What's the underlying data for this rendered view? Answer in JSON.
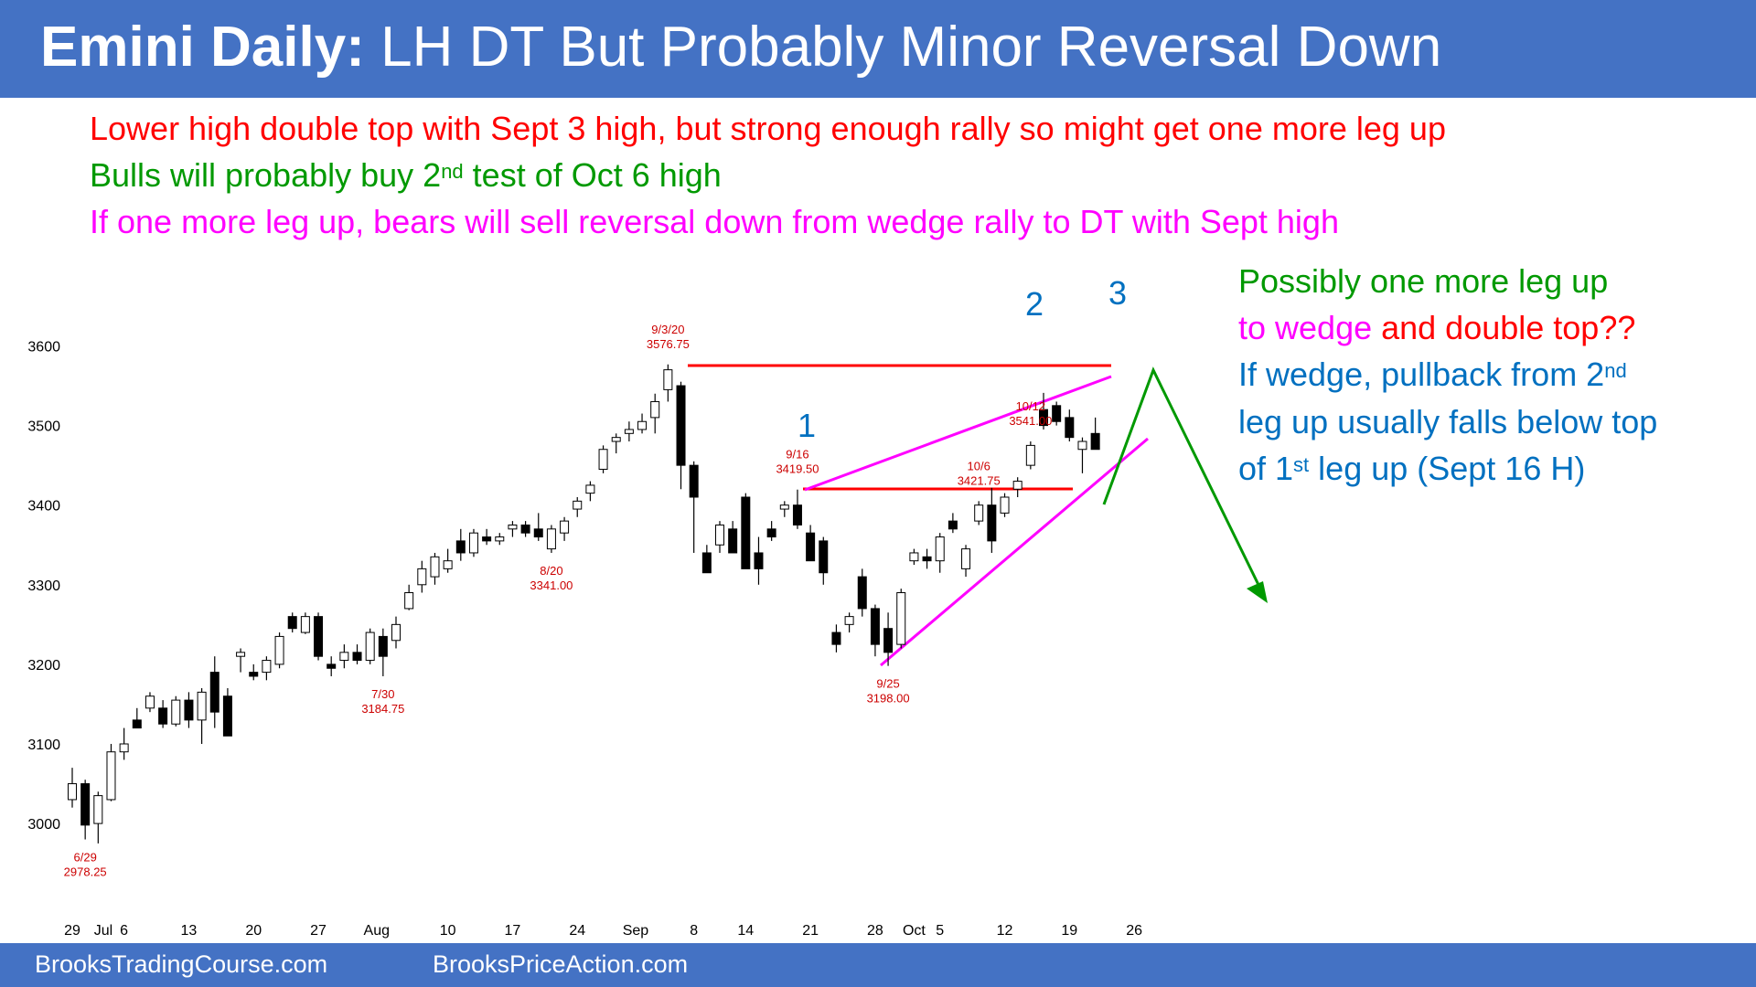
{
  "header": {
    "title_bold": "Emini Daily:",
    "title_rest": " LH DT But Probably Minor Reversal Down"
  },
  "notes": {
    "line1": "Lower high double top with Sept 3 high, but strong enough rally so might get one more leg up",
    "line2_a": "Bulls will probably buy 2",
    "line2_sup": "nd",
    "line2_b": " test of Oct 6 high",
    "line3": "If one more leg up, bears will sell reversal down from wedge rally to DT with Sept high"
  },
  "side_notes": {
    "l1": "Possibly one more leg up",
    "l2_a": "to wedge",
    "l2_b": " and double top??",
    "l3_a": "If wedge, pullback from 2",
    "l3_sup": "nd",
    "l4": "leg up usually falls below top",
    "l5_a": "of 1",
    "l5_sup": "st",
    "l5_b": " leg up (Sept 16 H)"
  },
  "footer": {
    "left": "BrooksTradingCourse.com",
    "right": "BrooksPriceAction.com"
  },
  "colors": {
    "bar": "#4472C4",
    "red": "#FF0000",
    "green": "#009900",
    "magenta": "#FF00FF",
    "blue": "#0070C0",
    "label_red": "#CC0000"
  },
  "chart_data": {
    "type": "candlestick",
    "ylim": [
      2950,
      3660
    ],
    "y_ticks": [
      3000,
      3100,
      3200,
      3300,
      3400,
      3500,
      3600
    ],
    "x_tick_labels": [
      {
        "label": "29",
        "idx": 0
      },
      {
        "label": "Jul",
        "idx": 2.4
      },
      {
        "label": "6",
        "idx": 4
      },
      {
        "label": "13",
        "idx": 9
      },
      {
        "label": "20",
        "idx": 14
      },
      {
        "label": "27",
        "idx": 19
      },
      {
        "label": "Aug",
        "idx": 23.5
      },
      {
        "label": "10",
        "idx": 29
      },
      {
        "label": "17",
        "idx": 34
      },
      {
        "label": "24",
        "idx": 39
      },
      {
        "label": "Sep",
        "idx": 43.5
      },
      {
        "label": "8",
        "idx": 48
      },
      {
        "label": "14",
        "idx": 52
      },
      {
        "label": "21",
        "idx": 57
      },
      {
        "label": "28",
        "idx": 62
      },
      {
        "label": "Oct",
        "idx": 65
      },
      {
        "label": "5",
        "idx": 67
      },
      {
        "label": "12",
        "idx": 72
      },
      {
        "label": "19",
        "idx": 77
      },
      {
        "label": "26",
        "idx": 82
      }
    ],
    "candles": [
      [
        3030,
        3070,
        3020,
        3050
      ],
      [
        3050,
        3055,
        2980,
        2998
      ],
      [
        3000,
        3040,
        2975,
        3035
      ],
      [
        3030,
        3100,
        3028,
        3090
      ],
      [
        3090,
        3120,
        3080,
        3100
      ],
      [
        3130,
        3145,
        3120,
        3120
      ],
      [
        3145,
        3165,
        3140,
        3160
      ],
      [
        3145,
        3155,
        3120,
        3125
      ],
      [
        3125,
        3160,
        3122,
        3155
      ],
      [
        3155,
        3165,
        3120,
        3130
      ],
      [
        3130,
        3170,
        3100,
        3165
      ],
      [
        3190,
        3210,
        3120,
        3140
      ],
      [
        3160,
        3170,
        3110,
        3110
      ],
      [
        3210,
        3220,
        3190,
        3215
      ],
      [
        3190,
        3200,
        3180,
        3185
      ],
      [
        3190,
        3210,
        3180,
        3205
      ],
      [
        3200,
        3240,
        3195,
        3235
      ],
      [
        3260,
        3265,
        3240,
        3245
      ],
      [
        3240,
        3265,
        3238,
        3260
      ],
      [
        3260,
        3265,
        3205,
        3210
      ],
      [
        3200,
        3210,
        3185,
        3195
      ],
      [
        3205,
        3225,
        3195,
        3215
      ],
      [
        3215,
        3225,
        3200,
        3205
      ],
      [
        3205,
        3245,
        3200,
        3240
      ],
      [
        3235,
        3245,
        3185,
        3210
      ],
      [
        3230,
        3260,
        3220,
        3250
      ],
      [
        3270,
        3300,
        3268,
        3290
      ],
      [
        3300,
        3330,
        3290,
        3320
      ],
      [
        3310,
        3340,
        3300,
        3335
      ],
      [
        3320,
        3345,
        3315,
        3330
      ],
      [
        3355,
        3370,
        3330,
        3340
      ],
      [
        3340,
        3370,
        3335,
        3365
      ],
      [
        3360,
        3370,
        3350,
        3355
      ],
      [
        3355,
        3365,
        3350,
        3360
      ],
      [
        3370,
        3380,
        3360,
        3375
      ],
      [
        3375,
        3380,
        3360,
        3365
      ],
      [
        3370,
        3390,
        3355,
        3360
      ],
      [
        3345,
        3375,
        3340,
        3370
      ],
      [
        3365,
        3385,
        3355,
        3380
      ],
      [
        3395,
        3410,
        3385,
        3405
      ],
      [
        3415,
        3430,
        3405,
        3425
      ],
      [
        3445,
        3475,
        3440,
        3470
      ],
      [
        3480,
        3490,
        3465,
        3485
      ],
      [
        3490,
        3505,
        3480,
        3495
      ],
      [
        3495,
        3515,
        3490,
        3505
      ],
      [
        3510,
        3540,
        3490,
        3530
      ],
      [
        3545,
        3576.75,
        3530,
        3570
      ],
      [
        3550,
        3555,
        3420,
        3450
      ],
      [
        3450,
        3455,
        3340,
        3410
      ],
      [
        3340,
        3350,
        3315,
        3315
      ],
      [
        3350,
        3380,
        3340,
        3375
      ],
      [
        3370,
        3380,
        3340,
        3340
      ],
      [
        3410,
        3415,
        3320,
        3320
      ],
      [
        3340,
        3360,
        3300,
        3320
      ],
      [
        3370,
        3380,
        3355,
        3360
      ],
      [
        3395,
        3405,
        3385,
        3400
      ],
      [
        3400,
        3419.5,
        3370,
        3375
      ],
      [
        3365,
        3375,
        3330,
        3330
      ],
      [
        3355,
        3360,
        3300,
        3315
      ],
      [
        3240,
        3250,
        3215,
        3225
      ],
      [
        3250,
        3265,
        3240,
        3260
      ],
      [
        3310,
        3320,
        3260,
        3270
      ],
      [
        3270,
        3275,
        3210,
        3225
      ],
      [
        3245,
        3265,
        3198,
        3215
      ],
      [
        3225,
        3295,
        3220,
        3290
      ],
      [
        3330,
        3345,
        3325,
        3340
      ],
      [
        3335,
        3345,
        3320,
        3330
      ],
      [
        3330,
        3365,
        3315,
        3360
      ],
      [
        3380,
        3390,
        3365,
        3370
      ],
      [
        3320,
        3350,
        3310,
        3345
      ],
      [
        3380,
        3405,
        3375,
        3400
      ],
      [
        3400,
        3421.75,
        3340,
        3355
      ],
      [
        3390,
        3415,
        3385,
        3410
      ],
      [
        3420,
        3435,
        3410,
        3430
      ],
      [
        3450,
        3480,
        3445,
        3475
      ],
      [
        3520,
        3541,
        3495,
        3500
      ],
      [
        3525,
        3530,
        3500,
        3505
      ],
      [
        3510,
        3520,
        3480,
        3485
      ],
      [
        3470,
        3485,
        3440,
        3480
      ],
      [
        3490,
        3510,
        3470,
        3470
      ]
    ],
    "point_labels": [
      {
        "date": "6/29",
        "value": "2978.25",
        "idx": 1,
        "pos": "below"
      },
      {
        "date": "7/30",
        "value": "3184.75",
        "idx": 24,
        "pos": "below"
      },
      {
        "date": "8/20",
        "value": "3341.00",
        "idx": 37,
        "pos": "below"
      },
      {
        "date": "9/3/20",
        "value": "3576.75",
        "idx": 46,
        "pos": "above"
      },
      {
        "date": "9/16",
        "value": "3419.50",
        "idx": 56,
        "pos": "above"
      },
      {
        "date": "9/25",
        "value": "3198.00",
        "idx": 63,
        "pos": "below"
      },
      {
        "date": "10/6",
        "value": "3421.75",
        "idx": 70,
        "pos": "above"
      },
      {
        "date": "10/12",
        "value": "3541.00",
        "idx": 74,
        "pos": "above"
      }
    ],
    "leg_labels": [
      {
        "text": "1",
        "x": 882,
        "y": 478
      },
      {
        "text": "2",
        "x": 1131,
        "y": 345
      },
      {
        "text": "3",
        "x": 1222,
        "y": 333
      }
    ]
  }
}
